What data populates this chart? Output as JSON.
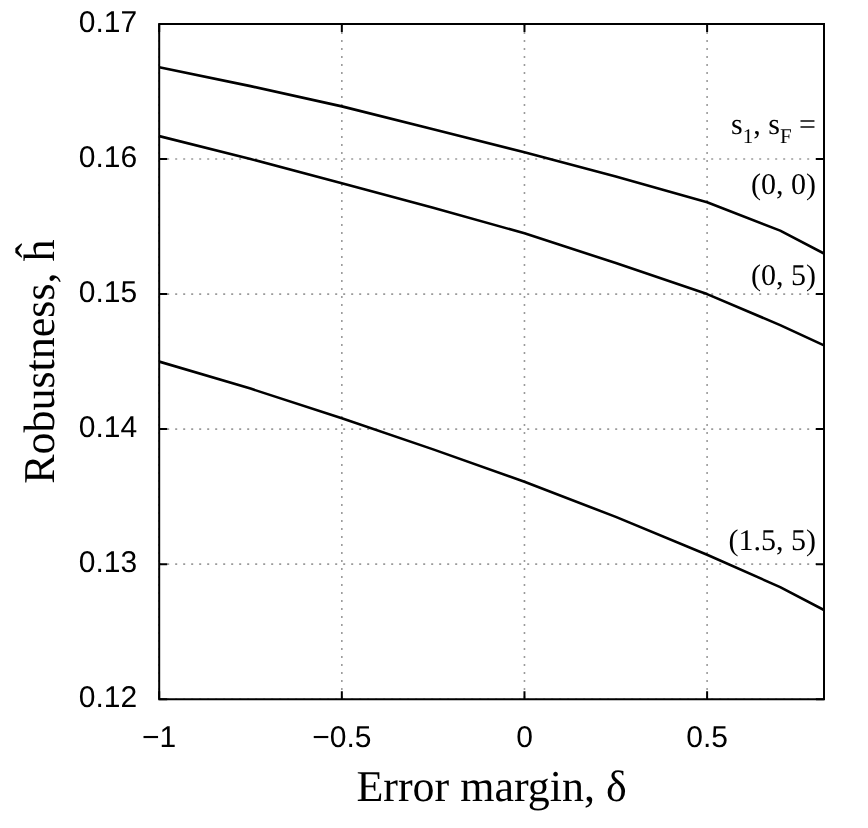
{
  "chart_data": {
    "type": "line",
    "xlabel": "Error margin, δ",
    "ylabel": "Robustness, ĥ",
    "x": [
      -1,
      -0.75,
      -0.5,
      -0.25,
      0,
      0.25,
      0.5,
      0.7,
      0.82
    ],
    "series": [
      {
        "name": "(0, 0)",
        "color": "#000000",
        "values": [
          0.1668,
          0.1654,
          0.1639,
          0.1622,
          0.1605,
          0.1587,
          0.1568,
          0.1547,
          0.153
        ]
      },
      {
        "name": "(0, 5)",
        "color": "#000000",
        "values": [
          0.1617,
          0.16,
          0.1582,
          0.1564,
          0.1545,
          0.1523,
          0.15,
          0.1477,
          0.1462
        ]
      },
      {
        "name": "(1.5, 5)",
        "color": "#000000",
        "values": [
          0.145,
          0.143,
          0.1408,
          0.1385,
          0.1361,
          0.1335,
          0.1307,
          0.1283,
          0.1266
        ]
      }
    ],
    "legend_title": "s$_{1}$, s$_{F}$ =",
    "xlim": [
      -1,
      0.82
    ],
    "xticks": [
      {
        "value": -1,
        "label": "−1"
      },
      {
        "value": -0.5,
        "label": "−0.5"
      },
      0,
      0.5
    ],
    "ylim": [
      0.12,
      0.17
    ],
    "yticks": [
      0.12,
      0.13,
      0.14,
      0.15,
      0.16,
      0.17
    ],
    "grid": true,
    "legend": "right",
    "marker": "none",
    "line_style": "solid"
  }
}
